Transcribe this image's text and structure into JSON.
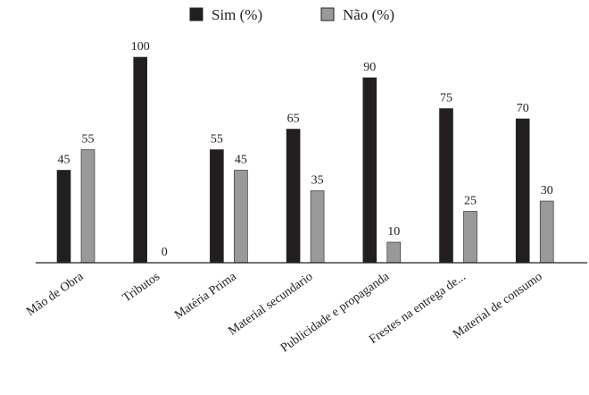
{
  "chart_data": {
    "type": "bar",
    "title": "",
    "xlabel": "",
    "ylabel": "",
    "categories": [
      "Mão de Obra",
      "Tributos",
      "Matéria Prima",
      "Material secundario",
      "Publicidade e propaganda",
      "Frestes na entrega de...",
      "Material de consumo"
    ],
    "series": [
      {
        "name": "Sim (%)",
        "values": [
          45,
          100,
          55,
          65,
          90,
          75,
          70
        ],
        "color": "#231f20"
      },
      {
        "name": "Não (%)",
        "values": [
          55,
          0,
          45,
          35,
          10,
          25,
          30
        ],
        "color": "#999999"
      }
    ],
    "ylim": [
      0,
      100
    ],
    "grid": false,
    "legend_position": "top-center",
    "data_labels": true
  }
}
